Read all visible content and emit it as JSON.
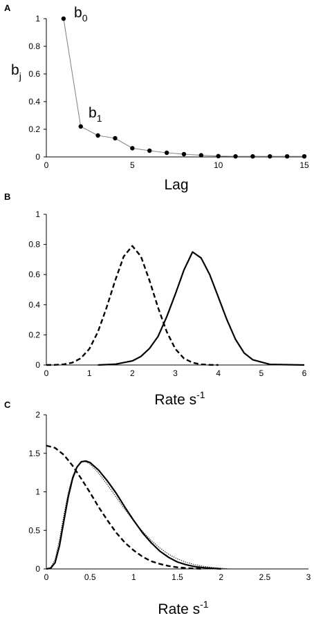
{
  "chart_data": [
    {
      "panel": "A",
      "type": "line",
      "xlabel": "Lag",
      "ylabel_base": "b",
      "ylabel_sub": "j",
      "xlim": [
        0,
        15
      ],
      "ylim": [
        0,
        1
      ],
      "xticks": [
        "0",
        "5",
        "10",
        "15"
      ],
      "yticks": [
        "0",
        "0.2",
        "0.4",
        "0.6",
        "0.8",
        "1"
      ],
      "annotations": [
        {
          "base": "b",
          "sub": "0",
          "x": 1,
          "y": 1
        },
        {
          "base": "b",
          "sub": "1",
          "x": 2,
          "y": 0.22
        }
      ],
      "series": [
        {
          "style": "solid-with-markers",
          "x": [
            1,
            2,
            3,
            4,
            5,
            6,
            7,
            8,
            9,
            10,
            11,
            12,
            13,
            14,
            15
          ],
          "y": [
            1.0,
            0.22,
            0.155,
            0.135,
            0.063,
            0.045,
            0.03,
            0.02,
            0.012,
            0.006,
            0.004,
            0.004,
            0.004,
            0.004,
            0.004
          ]
        }
      ]
    },
    {
      "panel": "B",
      "type": "line",
      "xlabel_base": "Rate s",
      "xlabel_sup": "-1",
      "xlim": [
        0,
        6
      ],
      "ylim": [
        0,
        1
      ],
      "xticks": [
        "0",
        "1",
        "2",
        "3",
        "4",
        "5",
        "6"
      ],
      "yticks": [
        "0",
        "0.2",
        "0.4",
        "0.6",
        "0.8",
        "1"
      ],
      "series": [
        {
          "style": "dashed",
          "x": [
            0,
            0.2,
            0.4,
            0.6,
            0.8,
            1.0,
            1.2,
            1.4,
            1.6,
            1.8,
            2.0,
            2.2,
            2.4,
            2.6,
            2.8,
            3.0,
            3.2,
            3.4,
            3.6,
            3.8,
            4.0
          ],
          "y": [
            0.0,
            0.001,
            0.004,
            0.015,
            0.044,
            0.107,
            0.22,
            0.38,
            0.56,
            0.72,
            0.79,
            0.72,
            0.56,
            0.38,
            0.22,
            0.107,
            0.044,
            0.015,
            0.004,
            0.001,
            0.0
          ]
        },
        {
          "style": "solid",
          "x": [
            1.2,
            1.6,
            2.0,
            2.2,
            2.4,
            2.6,
            2.8,
            3.0,
            3.2,
            3.4,
            3.6,
            3.8,
            4.0,
            4.2,
            4.4,
            4.6,
            4.8,
            5.2,
            6.0
          ],
          "y": [
            0.0,
            0.005,
            0.027,
            0.057,
            0.11,
            0.19,
            0.32,
            0.47,
            0.63,
            0.75,
            0.71,
            0.6,
            0.45,
            0.3,
            0.17,
            0.08,
            0.035,
            0.004,
            0.0
          ]
        }
      ]
    },
    {
      "panel": "C",
      "type": "line",
      "xlabel_base": "Rate s",
      "xlabel_sup": "-1",
      "xlim": [
        0,
        3
      ],
      "ylim": [
        0,
        2
      ],
      "xticks": [
        "0",
        "0.5",
        "1",
        "1.5",
        "2",
        "2.5",
        "3"
      ],
      "yticks": [
        "0",
        "0.5",
        "1",
        "1.5",
        "2"
      ],
      "series": [
        {
          "style": "dashed",
          "x": [
            0,
            0.1,
            0.2,
            0.3,
            0.4,
            0.5,
            0.6,
            0.7,
            0.8,
            0.9,
            1.0,
            1.1,
            1.2,
            1.3,
            1.4,
            1.5,
            1.6,
            1.7,
            1.8
          ],
          "y": [
            1.6,
            1.57,
            1.48,
            1.34,
            1.17,
            0.99,
            0.8,
            0.63,
            0.47,
            0.34,
            0.24,
            0.16,
            0.1,
            0.065,
            0.038,
            0.021,
            0.012,
            0.005,
            0.0
          ]
        },
        {
          "style": "solid",
          "x": [
            0,
            0.05,
            0.1,
            0.15,
            0.2,
            0.25,
            0.3,
            0.35,
            0.4,
            0.45,
            0.5,
            0.6,
            0.7,
            0.8,
            0.9,
            1.0,
            1.1,
            1.2,
            1.3,
            1.4,
            1.5,
            1.6,
            1.7,
            1.8,
            1.9,
            2.0
          ],
          "y": [
            0.0,
            0.01,
            0.08,
            0.3,
            0.62,
            0.93,
            1.17,
            1.32,
            1.39,
            1.4,
            1.38,
            1.28,
            1.14,
            0.98,
            0.8,
            0.63,
            0.47,
            0.34,
            0.23,
            0.15,
            0.09,
            0.055,
            0.03,
            0.016,
            0.007,
            0.0
          ]
        },
        {
          "style": "dotted",
          "x": [
            0,
            0.05,
            0.1,
            0.15,
            0.2,
            0.25,
            0.3,
            0.35,
            0.4,
            0.45,
            0.5,
            0.6,
            0.7,
            0.8,
            0.9,
            1.0,
            1.1,
            1.2,
            1.3,
            1.4,
            1.5,
            1.6,
            1.7,
            1.8,
            1.9,
            2.0,
            2.1
          ],
          "y": [
            0.0,
            0.02,
            0.12,
            0.38,
            0.7,
            0.99,
            1.2,
            1.33,
            1.39,
            1.39,
            1.36,
            1.24,
            1.09,
            0.93,
            0.77,
            0.62,
            0.49,
            0.37,
            0.27,
            0.19,
            0.13,
            0.085,
            0.055,
            0.033,
            0.02,
            0.01,
            0.0
          ]
        }
      ]
    }
  ]
}
